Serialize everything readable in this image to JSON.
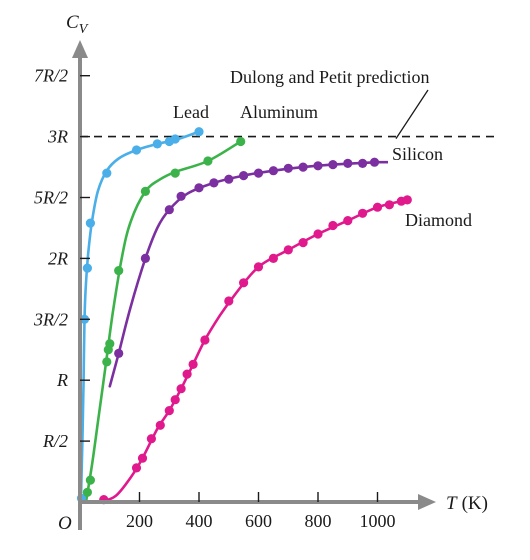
{
  "chart_data": {
    "type": "scatter",
    "title": "",
    "xlabel": "T (K)",
    "xlabel_main": "T",
    "xlabel_unit": "(K)",
    "ylabel": "CV",
    "ylabel_main": "C",
    "ylabel_sub": "V",
    "origin_label": "O",
    "xlim": [
      0,
      1150
    ],
    "ylim": [
      0,
      3.75
    ],
    "x_ticks": [
      200,
      400,
      600,
      800,
      1000
    ],
    "x_tick_labels": [
      "200",
      "400",
      "600",
      "800",
      "1000"
    ],
    "y_ticks": [
      0.5,
      1.0,
      1.5,
      2.0,
      2.5,
      3.0,
      3.5
    ],
    "y_tick_labels": [
      "R/2",
      "R",
      "3R/2",
      "2R",
      "5R/2",
      "3R",
      "7R/2"
    ],
    "y_unit": "R",
    "grid": false,
    "dulong_petit": {
      "value": 3.0,
      "label": "Dulong and Petit prediction"
    },
    "series": [
      {
        "name": "Lead",
        "color": "#4aaee8",
        "points": [
          [
            5,
            0.03
          ],
          [
            15,
            1.5
          ],
          [
            25,
            1.92
          ],
          [
            35,
            2.29
          ],
          [
            90,
            2.7
          ],
          [
            190,
            2.89
          ],
          [
            260,
            2.94
          ],
          [
            300,
            2.96
          ],
          [
            320,
            2.98
          ],
          [
            400,
            3.04
          ]
        ],
        "curve": [
          [
            3,
            0.0
          ],
          [
            8,
            0.5
          ],
          [
            12,
            1.0
          ],
          [
            15,
            1.5
          ],
          [
            20,
            1.8
          ],
          [
            28,
            2.05
          ],
          [
            40,
            2.3
          ],
          [
            60,
            2.55
          ],
          [
            90,
            2.72
          ],
          [
            130,
            2.82
          ],
          [
            190,
            2.89
          ],
          [
            260,
            2.94
          ],
          [
            330,
            2.98
          ],
          [
            400,
            3.04
          ]
        ]
      },
      {
        "name": "Aluminum",
        "color": "#3cb34a",
        "points": [
          [
            25,
            0.08
          ],
          [
            35,
            0.18
          ],
          [
            90,
            1.15
          ],
          [
            95,
            1.25
          ],
          [
            100,
            1.3
          ],
          [
            130,
            1.9
          ],
          [
            220,
            2.55
          ],
          [
            320,
            2.7
          ],
          [
            430,
            2.8
          ],
          [
            540,
            2.96
          ]
        ],
        "curve": [
          [
            20,
            0.0
          ],
          [
            40,
            0.3
          ],
          [
            60,
            0.65
          ],
          [
            85,
            1.1
          ],
          [
            110,
            1.55
          ],
          [
            140,
            2.0
          ],
          [
            170,
            2.3
          ],
          [
            220,
            2.55
          ],
          [
            270,
            2.65
          ],
          [
            320,
            2.71
          ],
          [
            430,
            2.8
          ],
          [
            540,
            2.96
          ]
        ]
      },
      {
        "name": "Silicon",
        "color": "#7b2fa0",
        "points": [
          [
            130,
            1.22
          ],
          [
            220,
            2.0
          ],
          [
            300,
            2.4
          ],
          [
            340,
            2.51
          ],
          [
            400,
            2.58
          ],
          [
            450,
            2.62
          ],
          [
            500,
            2.65
          ],
          [
            550,
            2.68
          ],
          [
            600,
            2.7
          ],
          [
            650,
            2.72
          ],
          [
            700,
            2.74
          ],
          [
            750,
            2.75
          ],
          [
            800,
            2.76
          ],
          [
            850,
            2.77
          ],
          [
            900,
            2.78
          ],
          [
            950,
            2.78
          ],
          [
            990,
            2.79
          ]
        ],
        "curve": [
          [
            100,
            0.95
          ],
          [
            130,
            1.22
          ],
          [
            170,
            1.6
          ],
          [
            220,
            2.0
          ],
          [
            260,
            2.25
          ],
          [
            300,
            2.4
          ],
          [
            360,
            2.53
          ],
          [
            450,
            2.62
          ],
          [
            550,
            2.68
          ],
          [
            650,
            2.72
          ],
          [
            750,
            2.75
          ],
          [
            850,
            2.77
          ],
          [
            1000,
            2.79
          ]
        ]
      },
      {
        "name": "Diamond",
        "color": "#e0198c",
        "points": [
          [
            80,
            0.02
          ],
          [
            190,
            0.28
          ],
          [
            210,
            0.36
          ],
          [
            240,
            0.52
          ],
          [
            270,
            0.63
          ],
          [
            300,
            0.75
          ],
          [
            320,
            0.84
          ],
          [
            340,
            0.93
          ],
          [
            360,
            1.05
          ],
          [
            380,
            1.13
          ],
          [
            420,
            1.33
          ],
          [
            500,
            1.65
          ],
          [
            550,
            1.8
          ],
          [
            600,
            1.93
          ],
          [
            650,
            2.0
          ],
          [
            700,
            2.07
          ],
          [
            750,
            2.13
          ],
          [
            800,
            2.2
          ],
          [
            850,
            2.27
          ],
          [
            900,
            2.31
          ],
          [
            950,
            2.37
          ],
          [
            1000,
            2.42
          ],
          [
            1040,
            2.44
          ],
          [
            1080,
            2.47
          ],
          [
            1100,
            2.48
          ]
        ],
        "curve": [
          [
            70,
            0.0
          ],
          [
            120,
            0.05
          ],
          [
            170,
            0.2
          ],
          [
            210,
            0.36
          ],
          [
            260,
            0.6
          ],
          [
            300,
            0.75
          ],
          [
            340,
            0.93
          ],
          [
            380,
            1.13
          ],
          [
            420,
            1.33
          ],
          [
            470,
            1.53
          ],
          [
            520,
            1.7
          ],
          [
            600,
            1.93
          ],
          [
            700,
            2.07
          ],
          [
            800,
            2.2
          ],
          [
            900,
            2.31
          ],
          [
            1000,
            2.42
          ],
          [
            1100,
            2.48
          ]
        ]
      }
    ]
  }
}
